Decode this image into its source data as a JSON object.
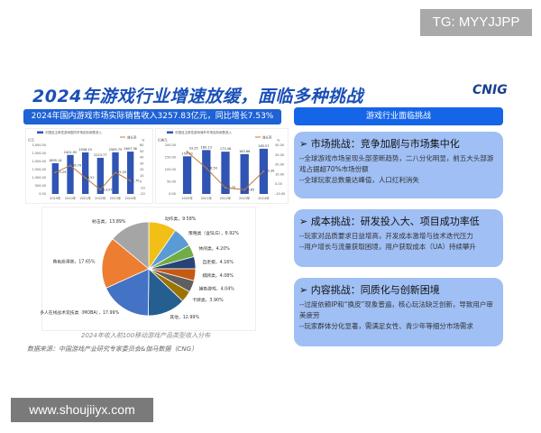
{
  "watermark_top": "TG: MYYJJPP",
  "watermark_bottom": "www.shoujiiyx.com",
  "title": "2024年游戏行业增速放缓，面临多种挑战",
  "logo": "CNIG",
  "banner": "2024年国内游戏市场实际销售收入3257.83亿元，同比增长7.53%",
  "chart_data": [
    {
      "type": "bar",
      "legend": [
        "中国自主研发游戏国内市场实际销售收入",
        "增长率"
      ],
      "ylabel": "亿元",
      "y2label": "%",
      "categories": [
        "2019年",
        "2020年",
        "2021年",
        "2022年",
        "2023年",
        "2024年"
      ],
      "ylim": [
        0,
        3000
      ],
      "y2lim": [
        -20,
        60
      ],
      "yticks": [
        "0.00",
        "500.00",
        "1,000.00",
        "1,500.00",
        "2,000.00",
        "2,500.00",
        "3,000.00"
      ],
      "y2ticks": [
        "-20",
        "-10",
        "0",
        "10",
        "20",
        "30",
        "40",
        "50",
        "60"
      ],
      "series": [
        {
          "name": "中国自主研发游戏国内市场实际销售收入",
          "type": "bar",
          "values": [
            1895.14,
            2401.92,
            2558.19,
            2223.77,
            2563.75,
            2607.36
          ]
        },
        {
          "name": "增长率",
          "type": "line",
          "values": [
            15.29,
            26.74,
            6.51,
            -13.07,
            15.29,
            1.7
          ]
        }
      ]
    },
    {
      "type": "bar",
      "legend": [
        "中国自主研发游戏海外市场实际销售收入",
        "增长率"
      ],
      "ylabel": "亿美元",
      "y2label": "%",
      "categories": [
        "2020年",
        "2021年",
        "2022年",
        "2023年",
        "2024年"
      ],
      "ylim": [
        0,
        200
      ],
      "y2lim": [
        -10,
        40
      ],
      "yticks": [
        "0.00",
        "50.00",
        "100.00",
        "150.00",
        "200.00"
      ],
      "y2ticks": [
        "-10.00",
        "0.00",
        "10.00",
        "20.00",
        "30.00",
        "40.00"
      ],
      "series": [
        {
          "name": "中国自主研发游戏海外市场实际销售收入",
          "type": "bar",
          "values": [
            154.5,
            180.13,
            173.46,
            163.66,
            185.57
          ]
        },
        {
          "name": "增长率",
          "type": "line",
          "values": [
            33.25,
            16.5,
            -3.7,
            -5.65,
            13.39
          ]
        }
      ]
    },
    {
      "type": "pie",
      "title": "2024年收入前100移动游戏产品类型收入分布",
      "slices": [
        {
          "label": "动作类",
          "value": 9.58,
          "color": "#f2bf16"
        },
        {
          "label": "策略类（含SLG）",
          "value": 6.92,
          "color": "#5b9bd5"
        },
        {
          "label": "休闲类",
          "value": 4.2,
          "color": "#70ad47"
        },
        {
          "label": "自走棋",
          "value": 4.16,
          "color": "#264478"
        },
        {
          "label": "棋牌类",
          "value": 4.08,
          "color": "#c55a11"
        },
        {
          "label": "捕鱼游戏",
          "value": 4.04,
          "color": "#5f5f5f"
        },
        {
          "label": "卡牌类",
          "value": 3.9,
          "color": "#9c7400"
        },
        {
          "label": "其他",
          "value": 12.99,
          "color": "#255e91"
        },
        {
          "label": "多人在线战术竞技类（MOBA）",
          "value": 17.99,
          "color": "#4472c4"
        },
        {
          "label": "角色扮演类",
          "value": 17.65,
          "color": "#ed7d31"
        },
        {
          "label": "射击类",
          "value": 13.89,
          "color": "#a5a5a5"
        }
      ]
    }
  ],
  "pie_caption": "2024年收入前100移动游戏产品类型收入分布",
  "source": "数据来源：中国游戏产业研究专家委员会&伽马数据（CNG）",
  "right": {
    "header": "游戏行业面临挑战",
    "cards": [
      {
        "title": "➢  市场挑战：竞争加剧与市场集中化",
        "lines": [
          "--全球游戏市场呈现头部垄断趋势，二八分化明显，前五大头部游戏占据超70%市场份额",
          "--全球玩家总数量达峰值，人口红利消失"
        ]
      },
      {
        "title": "➢  成本挑战：研发投入大、项目成功率低",
        "lines": [
          "--玩家对品质要求日益增高，开发成本激增与技术迭代压力",
          "--用户增长与流量获取困境，用户获取成本（UA）持续攀升"
        ]
      },
      {
        "title": "➢  内容挑战：同质化与创新困境",
        "lines": [
          "--过度依赖IP和“换皮”现象普遍，核心玩法缺乏创新，导致用户审美疲劳",
          "--玩家群体分化显著，需满足女性、青少年等细分市场需求"
        ]
      }
    ]
  }
}
